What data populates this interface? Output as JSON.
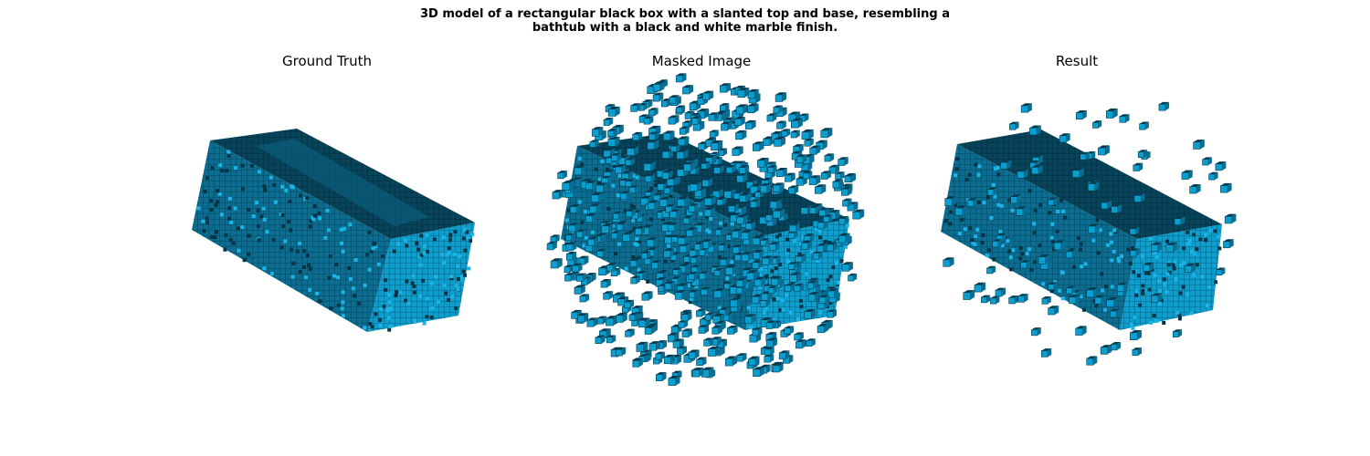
{
  "figure": {
    "title": "3D model of a rectangular black box with a slanted top and base, resembling a bathtub with a black and white marble finish."
  },
  "panels": [
    {
      "title": "Ground Truth"
    },
    {
      "title": "Masked Image"
    },
    {
      "title": "Result"
    }
  ],
  "colors": {
    "voxel_front": "#0b9fd0",
    "voxel_side": "#0a6e93",
    "voxel_top": "#063d52",
    "voxel_edge": "#04384c",
    "background": "#ffffff"
  }
}
